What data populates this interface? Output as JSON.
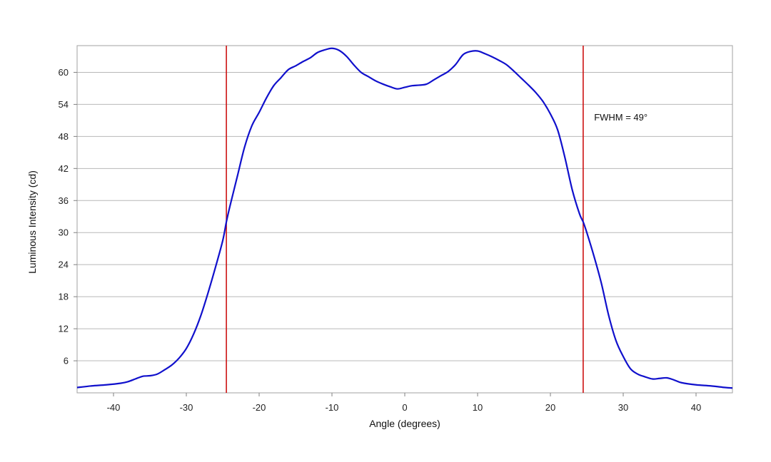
{
  "chart_data": {
    "type": "line",
    "title": "",
    "xlabel": "Angle (degrees)",
    "ylabel": "Luminous Intensity (cd)",
    "xlim": [
      -45,
      45
    ],
    "ylim": [
      0,
      65
    ],
    "x_ticks": [
      -40,
      -30,
      -20,
      -10,
      0,
      10,
      20,
      30,
      40
    ],
    "y_ticks": [
      6,
      12,
      18,
      24,
      30,
      36,
      42,
      48,
      54,
      60
    ],
    "grid": "horizontal",
    "series": [
      {
        "color": "#1010cc",
        "x": [
          -45,
          -43,
          -41,
          -39,
          -38,
          -37,
          -36,
          -35,
          -34,
          -33,
          -32,
          -31,
          -30,
          -29,
          -28,
          -27,
          -26,
          -25,
          -24.5,
          -24,
          -23,
          -22,
          -21,
          -20,
          -19,
          -18,
          -17,
          -16,
          -15,
          -14,
          -13,
          -12,
          -11,
          -10,
          -9,
          -8,
          -7,
          -6,
          -5,
          -4,
          -3,
          -2,
          -1,
          0,
          1,
          2,
          3,
          4,
          5,
          6,
          7,
          8,
          9,
          10,
          11,
          12,
          13,
          14,
          15,
          16,
          17,
          18,
          19,
          20,
          21,
          22,
          23,
          24,
          24.5,
          25,
          26,
          27,
          28,
          29,
          30,
          31,
          32,
          33,
          34,
          35,
          36,
          37,
          38,
          40,
          42,
          44,
          45
        ],
        "y": [
          1.0,
          1.3,
          1.5,
          1.8,
          2.1,
          2.6,
          3.1,
          3.2,
          3.5,
          4.3,
          5.2,
          6.5,
          8.3,
          11.0,
          14.5,
          18.8,
          23.5,
          28.5,
          32.0,
          35.0,
          40.5,
          46.0,
          50.0,
          52.5,
          55.2,
          57.5,
          59.0,
          60.5,
          61.2,
          62.0,
          62.7,
          63.7,
          64.2,
          64.5,
          64.1,
          63.0,
          61.4,
          60.0,
          59.2,
          58.4,
          57.8,
          57.3,
          56.9,
          57.2,
          57.5,
          57.6,
          57.8,
          58.6,
          59.4,
          60.2,
          61.5,
          63.3,
          63.9,
          64.0,
          63.5,
          62.9,
          62.2,
          61.4,
          60.2,
          58.9,
          57.6,
          56.2,
          54.5,
          52.2,
          49.2,
          44.0,
          38.0,
          33.5,
          32.0,
          30.0,
          25.5,
          20.5,
          14.5,
          9.8,
          6.8,
          4.5,
          3.5,
          3.0,
          2.6,
          2.7,
          2.8,
          2.4,
          1.9,
          1.5,
          1.3,
          1.0,
          0.9
        ]
      }
    ],
    "vlines": [
      {
        "x": -24.5,
        "color": "#cc1111"
      },
      {
        "x": 24.5,
        "color": "#cc1111"
      }
    ],
    "annotation": {
      "text": "FWHM = 49°",
      "x": 26,
      "y": 51
    }
  }
}
